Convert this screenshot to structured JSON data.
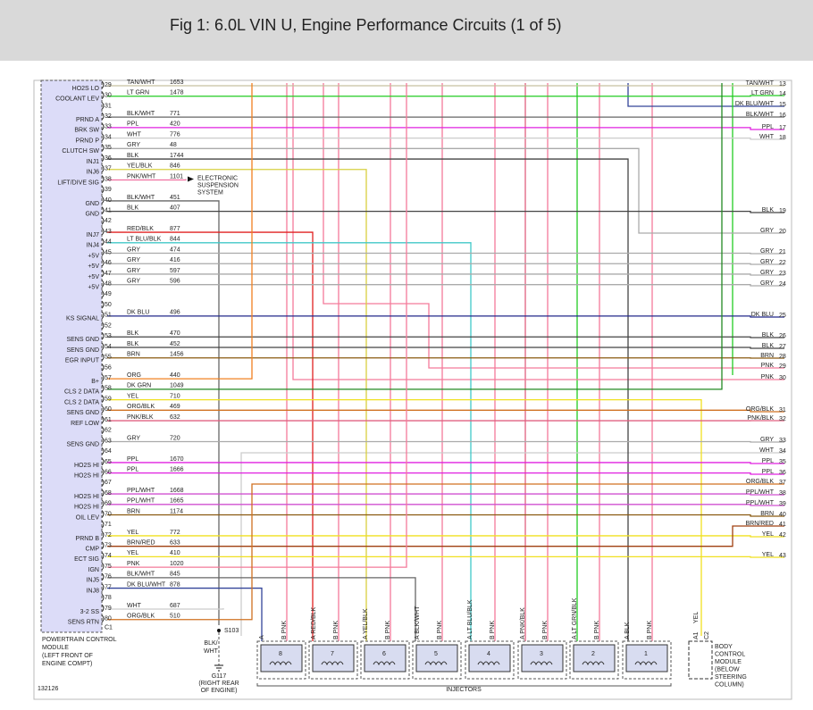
{
  "header": {
    "title": "Fig 1: 6.0L VIN U, Engine Performance Circuits (1 of 5)"
  },
  "pcm": {
    "label_lines": [
      "POWERTRAIN CONTROL",
      "MODULE",
      "(LEFT FRONT OF",
      "ENGINE COMPT)"
    ],
    "connector": "C1",
    "pins": [
      {
        "pin": 29,
        "label": "HO2S LO",
        "wire": "TAN/WHT",
        "circuit": "1653",
        "color": "#c8c0a0"
      },
      {
        "pin": 30,
        "label": "COOLANT LEV",
        "wire": "LT GRN",
        "circuit": "1478",
        "color": "#22cc22"
      },
      {
        "pin": 31
      },
      {
        "pin": 32,
        "label": "PRND A",
        "wire": "BLK/WHT",
        "circuit": "771",
        "color": "#666666"
      },
      {
        "pin": 33,
        "label": "BRK SW",
        "wire": "PPL",
        "circuit": "420",
        "color": "#e020e0"
      },
      {
        "pin": 34,
        "label": "PRND P",
        "wire": "WHT",
        "circuit": "776",
        "color": "#cccccc"
      },
      {
        "pin": 35,
        "label": "CLUTCH SW",
        "wire": "GRY",
        "circuit": "48",
        "color": "#aaaaaa"
      },
      {
        "pin": 36,
        "label": "INJ1",
        "wire": "BLK",
        "circuit": "1744",
        "color": "#444444"
      },
      {
        "pin": 37,
        "label": "INJ6",
        "wire": "YEL/BLK",
        "circuit": "846",
        "color": "#d8d040"
      },
      {
        "pin": 38,
        "label": "LIFT/DIVE SIG",
        "wire": "PNK/WHT",
        "circuit": "1101",
        "color": "#f070a0"
      },
      {
        "pin": 39
      },
      {
        "pin": 40,
        "label": "GND",
        "wire": "BLK/WHT",
        "circuit": "451",
        "color": "#666666"
      },
      {
        "pin": 41,
        "label": "GND",
        "wire": "BLK",
        "circuit": "407",
        "color": "#444444"
      },
      {
        "pin": 42
      },
      {
        "pin": 43,
        "label": "INJ7",
        "wire": "RED/BLK",
        "circuit": "877",
        "color": "#e02020"
      },
      {
        "pin": 44,
        "label": "INJ4",
        "wire": "LT BLU/BLK",
        "circuit": "844",
        "color": "#40c8c8"
      },
      {
        "pin": 45,
        "label": "+5V",
        "wire": "GRY",
        "circuit": "474",
        "color": "#aaaaaa"
      },
      {
        "pin": 46,
        "label": "+5V",
        "wire": "GRY",
        "circuit": "416",
        "color": "#aaaaaa"
      },
      {
        "pin": 47,
        "label": "+5V",
        "wire": "GRY",
        "circuit": "597",
        "color": "#aaaaaa"
      },
      {
        "pin": 48,
        "label": "+5V",
        "wire": "GRY",
        "circuit": "596",
        "color": "#aaaaaa"
      },
      {
        "pin": 49
      },
      {
        "pin": 50
      },
      {
        "pin": 51,
        "label": "KS SIGNAL",
        "wire": "DK BLU",
        "circuit": "496",
        "color": "#22288a"
      },
      {
        "pin": 52
      },
      {
        "pin": 53,
        "label": "SENS GND",
        "wire": "BLK",
        "circuit": "470",
        "color": "#444444"
      },
      {
        "pin": 54,
        "label": "SENS GND",
        "wire": "BLK",
        "circuit": "452",
        "color": "#444444"
      },
      {
        "pin": 55,
        "label": "EGR INPUT",
        "wire": "BRN",
        "circuit": "1456",
        "color": "#8a5a10"
      },
      {
        "pin": 56
      },
      {
        "pin": 57,
        "label": "B+",
        "wire": "ORG",
        "circuit": "440",
        "color": "#f08020"
      },
      {
        "pin": 58,
        "label": "CLS 2 DATA",
        "wire": "DK GRN",
        "circuit": "1049",
        "color": "#228822"
      },
      {
        "pin": 59,
        "label": "CLS 2 DATA",
        "wire": "YEL",
        "circuit": "710",
        "color": "#f0e020"
      },
      {
        "pin": 60,
        "label": "SENS GND",
        "wire": "ORG/BLK",
        "circuit": "469",
        "color": "#d07020"
      },
      {
        "pin": 61,
        "label": "REF LOW",
        "wire": "PNK/BLK",
        "circuit": "632",
        "color": "#e06080"
      },
      {
        "pin": 62
      },
      {
        "pin": 63,
        "label": "SENS GND",
        "wire": "GRY",
        "circuit": "720",
        "color": "#aaaaaa"
      },
      {
        "pin": 64
      },
      {
        "pin": 65,
        "label": "HO2S HI",
        "wire": "PPL",
        "circuit": "1670",
        "color": "#e020e0"
      },
      {
        "pin": 66,
        "label": "HO2S HI",
        "wire": "PPL",
        "circuit": "1666",
        "color": "#e020e0"
      },
      {
        "pin": 67
      },
      {
        "pin": 68,
        "label": "HO2S HI",
        "wire": "PPL/WHT",
        "circuit": "1668",
        "color": "#d050d0"
      },
      {
        "pin": 69,
        "label": "HO2S HI",
        "wire": "PPL/WHT",
        "circuit": "1665",
        "color": "#d050d0"
      },
      {
        "pin": 70,
        "label": "OIL LEV",
        "wire": "BRN",
        "circuit": "1174",
        "color": "#8a5a10"
      },
      {
        "pin": 71
      },
      {
        "pin": 72,
        "label": "PRND B",
        "wire": "YEL",
        "circuit": "772",
        "color": "#f0e020"
      },
      {
        "pin": 73,
        "label": "CMP",
        "wire": "BRN/RED",
        "circuit": "633",
        "color": "#a04010"
      },
      {
        "pin": 74,
        "label": "ECT SIG",
        "wire": "YEL",
        "circuit": "410",
        "color": "#f0e020"
      },
      {
        "pin": 75,
        "label": "IGN",
        "wire": "PNK",
        "circuit": "1020",
        "color": "#f47a9a"
      },
      {
        "pin": 76,
        "label": "INJ5",
        "wire": "BLK/WHT",
        "circuit": "845",
        "color": "#666666"
      },
      {
        "pin": 77,
        "label": "INJ8",
        "wire": "DK BLU/WHT",
        "circuit": "878",
        "color": "#334499"
      },
      {
        "pin": 78
      },
      {
        "pin": 79,
        "label": "3-2 SS",
        "wire": "WHT",
        "circuit": "687",
        "color": "#cccccc"
      },
      {
        "pin": 80,
        "label": "SENS RTN",
        "wire": "ORG/BLK",
        "circuit": "510",
        "color": "#d07020"
      }
    ]
  },
  "terminals": [
    {
      "wire": "TAN/WHT",
      "number": 13,
      "color": "#c8c0a0"
    },
    {
      "wire": "LT GRN",
      "number": 14,
      "color": "#22cc22"
    },
    {
      "wire": "DK BLU/WHT",
      "number": 15,
      "color": "#334499"
    },
    {
      "wire": "BLK/WHT",
      "number": 16,
      "color": "#666666"
    },
    {
      "wire": "PPL",
      "number": 17,
      "color": "#e020e0"
    },
    {
      "wire": "WHT",
      "number": 18,
      "color": "#cccccc"
    },
    {
      "wire": "BLK",
      "number": 19,
      "color": "#444444"
    },
    {
      "wire": "GRY",
      "number": 20,
      "color": "#aaaaaa"
    },
    {
      "wire": "GRY",
      "number": 21,
      "color": "#aaaaaa"
    },
    {
      "wire": "GRY",
      "number": 22,
      "color": "#aaaaaa"
    },
    {
      "wire": "GRY",
      "number": 23,
      "color": "#aaaaaa"
    },
    {
      "wire": "GRY",
      "number": 24,
      "color": "#aaaaaa"
    },
    {
      "wire": "DK BLU",
      "number": 25,
      "color": "#22288a"
    },
    {
      "wire": "BLK",
      "number": 26,
      "color": "#444444"
    },
    {
      "wire": "BLK",
      "number": 27,
      "color": "#444444"
    },
    {
      "wire": "BRN",
      "number": 28,
      "color": "#8a5a10"
    },
    {
      "wire": "PNK",
      "number": 29,
      "color": "#f47a9a"
    },
    {
      "wire": "PNK",
      "number": 30,
      "color": "#f47a9a"
    },
    {
      "wire": "ORG/BLK",
      "number": 31,
      "color": "#d07020"
    },
    {
      "wire": "PNK/BLK",
      "number": 32,
      "color": "#e06080"
    },
    {
      "wire": "GRY",
      "number": 33,
      "color": "#aaaaaa"
    },
    {
      "wire": "WHT",
      "number": 34,
      "color": "#cccccc"
    },
    {
      "wire": "PPL",
      "number": 35,
      "color": "#e020e0"
    },
    {
      "wire": "PPL",
      "number": 36,
      "color": "#e020e0"
    },
    {
      "wire": "ORG/BLK",
      "number": 37,
      "color": "#d07020"
    },
    {
      "wire": "PPL/WHT",
      "number": 38,
      "color": "#d050d0"
    },
    {
      "wire": "PPL/WHT",
      "number": 39,
      "color": "#d050d0"
    },
    {
      "wire": "BRN",
      "number": 40,
      "color": "#8a5a10"
    },
    {
      "wire": "BRN/RED",
      "number": 41,
      "color": "#a04010"
    },
    {
      "wire": "YEL",
      "number": 42,
      "color": "#f0e020"
    },
    {
      "wire": "YEL",
      "number": 43,
      "color": "#f0e020"
    }
  ],
  "suspension": {
    "label_lines": [
      "ELECTRONIC",
      "SUSPENSION",
      "SYSTEM"
    ]
  },
  "splice": {
    "label": "S103",
    "wire_lines": [
      "BLK/",
      "WHT"
    ]
  },
  "ground": {
    "label_lines": [
      "G117",
      "(RIGHT REAR",
      "OF ENGINE)"
    ]
  },
  "injectors": {
    "label": "INJECTORS",
    "items": [
      {
        "number": "8",
        "pin_a": "A",
        "pin_b": "B PNK"
      },
      {
        "number": "7",
        "pin_a": "A RED/BLK",
        "pin_b": "B PNK"
      },
      {
        "number": "6",
        "pin_a": "A YEL/BLK",
        "pin_b": "B PNK"
      },
      {
        "number": "5",
        "pin_a": "A BLK/WHT",
        "pin_b": "B PNK"
      },
      {
        "number": "4",
        "pin_a": "A LT BLU/BLK",
        "pin_b": "B PNK"
      },
      {
        "number": "3",
        "pin_a": "A PNK/BLK",
        "pin_b": "B PNK"
      },
      {
        "number": "2",
        "pin_a": "A LT GRN/BLK",
        "pin_b": "B PNK"
      },
      {
        "number": "1",
        "pin_a": "A BLK",
        "pin_b": "B PNK"
      }
    ]
  },
  "bcm": {
    "pin": "A1",
    "wire": "YEL",
    "connector": "C2",
    "label_lines": [
      "BODY",
      "CONTROL",
      "MODULE",
      "(BELOW",
      "STEERING",
      "COLUMN)"
    ]
  },
  "figure_id": "132126"
}
